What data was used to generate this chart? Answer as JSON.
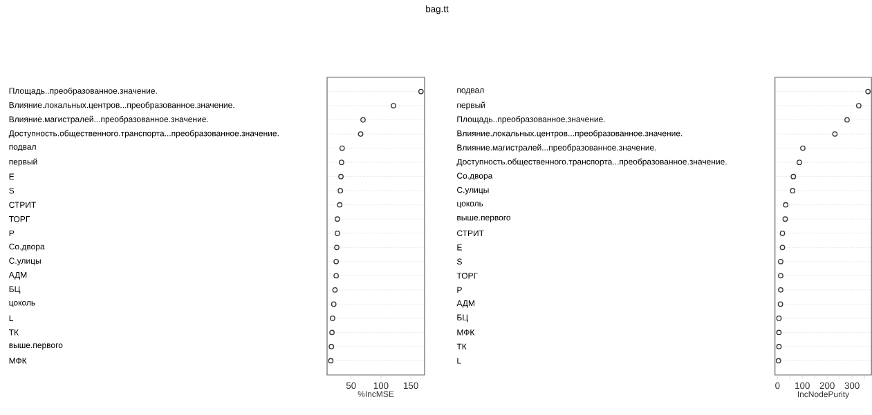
{
  "chart_data": [
    {
      "type": "scatter",
      "title": "bag.tt",
      "orientation": "horizontal",
      "marker": "circle",
      "color": "#333333",
      "grid": "y",
      "xlabel": "%IncMSE",
      "categories": [
        "Площадь..преобразованное.значение.",
        "Влияние.локальных.центров...преобразованное.значение.",
        "Влияние.магистралей...преобразованное.значение.",
        "Доступность.общественного.транспорта...преобразованное.значение.",
        "подвал",
        "первый",
        "E",
        "S",
        "СТРИТ",
        "ТОРГ",
        "P",
        "Со.двора",
        "С.улицы",
        "АДМ",
        "БЦ",
        "цоколь",
        "L",
        "ТК",
        "выше.первого",
        "МФК"
      ],
      "values": [
        167,
        121,
        70,
        66,
        35,
        34,
        33,
        32,
        31,
        27,
        27,
        26,
        25,
        25,
        23,
        21,
        19,
        18,
        17,
        16
      ],
      "xlim": [
        9.8,
        173
      ],
      "xticks": [
        50,
        100,
        150
      ]
    },
    {
      "type": "scatter",
      "orientation": "horizontal",
      "marker": "circle",
      "color": "#333333",
      "grid": "y",
      "xlabel": "IncNodePurity",
      "categories": [
        "подвал",
        "первый",
        "Площадь..преобразованное.значение.",
        "Влияние.локальных.центров...преобразованное.значение.",
        "Влияние.магистралей...преобразованное.значение.",
        "Доступность.общественного.транспорта...преобразованное.значение.",
        "Со.двора",
        "С.улицы",
        "цоколь",
        "выше.первого",
        "СТРИТ",
        "E",
        "S",
        "ТОРГ",
        "P",
        "АДМ",
        "БЦ",
        "МФК",
        "ТК",
        "L"
      ],
      "values": [
        364,
        327,
        280,
        231,
        102,
        88,
        64,
        61,
        33,
        31,
        20,
        20,
        13,
        13,
        13,
        12,
        6,
        6,
        6,
        4
      ],
      "xlim": [
        -10,
        378
      ],
      "xticks": [
        0,
        {
          "value": 50,
          "label": null
        },
        100,
        {
          "value": 150,
          "label": null
        },
        200,
        {
          "value": 250,
          "label": null
        },
        300,
        {
          "value": 350,
          "label": null
        }
      ]
    }
  ]
}
